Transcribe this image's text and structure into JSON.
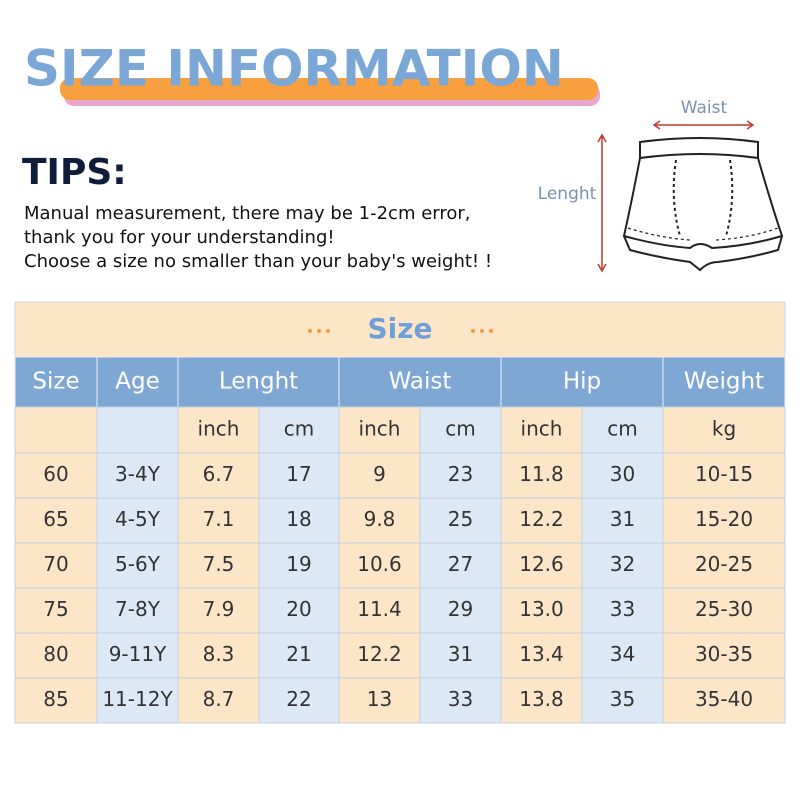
{
  "header": {
    "title": "SIZE INFORMATION"
  },
  "tips": {
    "title": "TIPS:",
    "lines": [
      "Manual measurement, there may be 1-2cm error,",
      "thank you for your understanding!",
      "Choose a size no smaller than your baby's weight! !"
    ]
  },
  "diagram": {
    "waist_label": "Waist",
    "length_label": "Lenght"
  },
  "table": {
    "caption": "Size",
    "headers": [
      "Size",
      "Age",
      "Lenght",
      "Waist",
      "Hip",
      "Weight"
    ],
    "units": [
      "inch",
      "cm",
      "inch",
      "cm",
      "inch",
      "cm",
      "kg"
    ],
    "rows": [
      [
        "60",
        "3-4Y",
        "6.7",
        "17",
        "9",
        "23",
        "11.8",
        "30",
        "10-15"
      ],
      [
        "65",
        "4-5Y",
        "7.1",
        "18",
        "9.8",
        "25",
        "12.2",
        "31",
        "15-20"
      ],
      [
        "70",
        "5-6Y",
        "7.5",
        "19",
        "10.6",
        "27",
        "12.6",
        "32",
        "20-25"
      ],
      [
        "75",
        "7-8Y",
        "7.9",
        "20",
        "11.4",
        "29",
        "13.0",
        "33",
        "25-30"
      ],
      [
        "80",
        "9-11Y",
        "8.3",
        "21",
        "12.2",
        "31",
        "13.4",
        "34",
        "30-35"
      ],
      [
        "85",
        "11-12Y",
        "8.7",
        "22",
        "13",
        "33",
        "13.8",
        "35",
        "35-40"
      ]
    ]
  }
}
